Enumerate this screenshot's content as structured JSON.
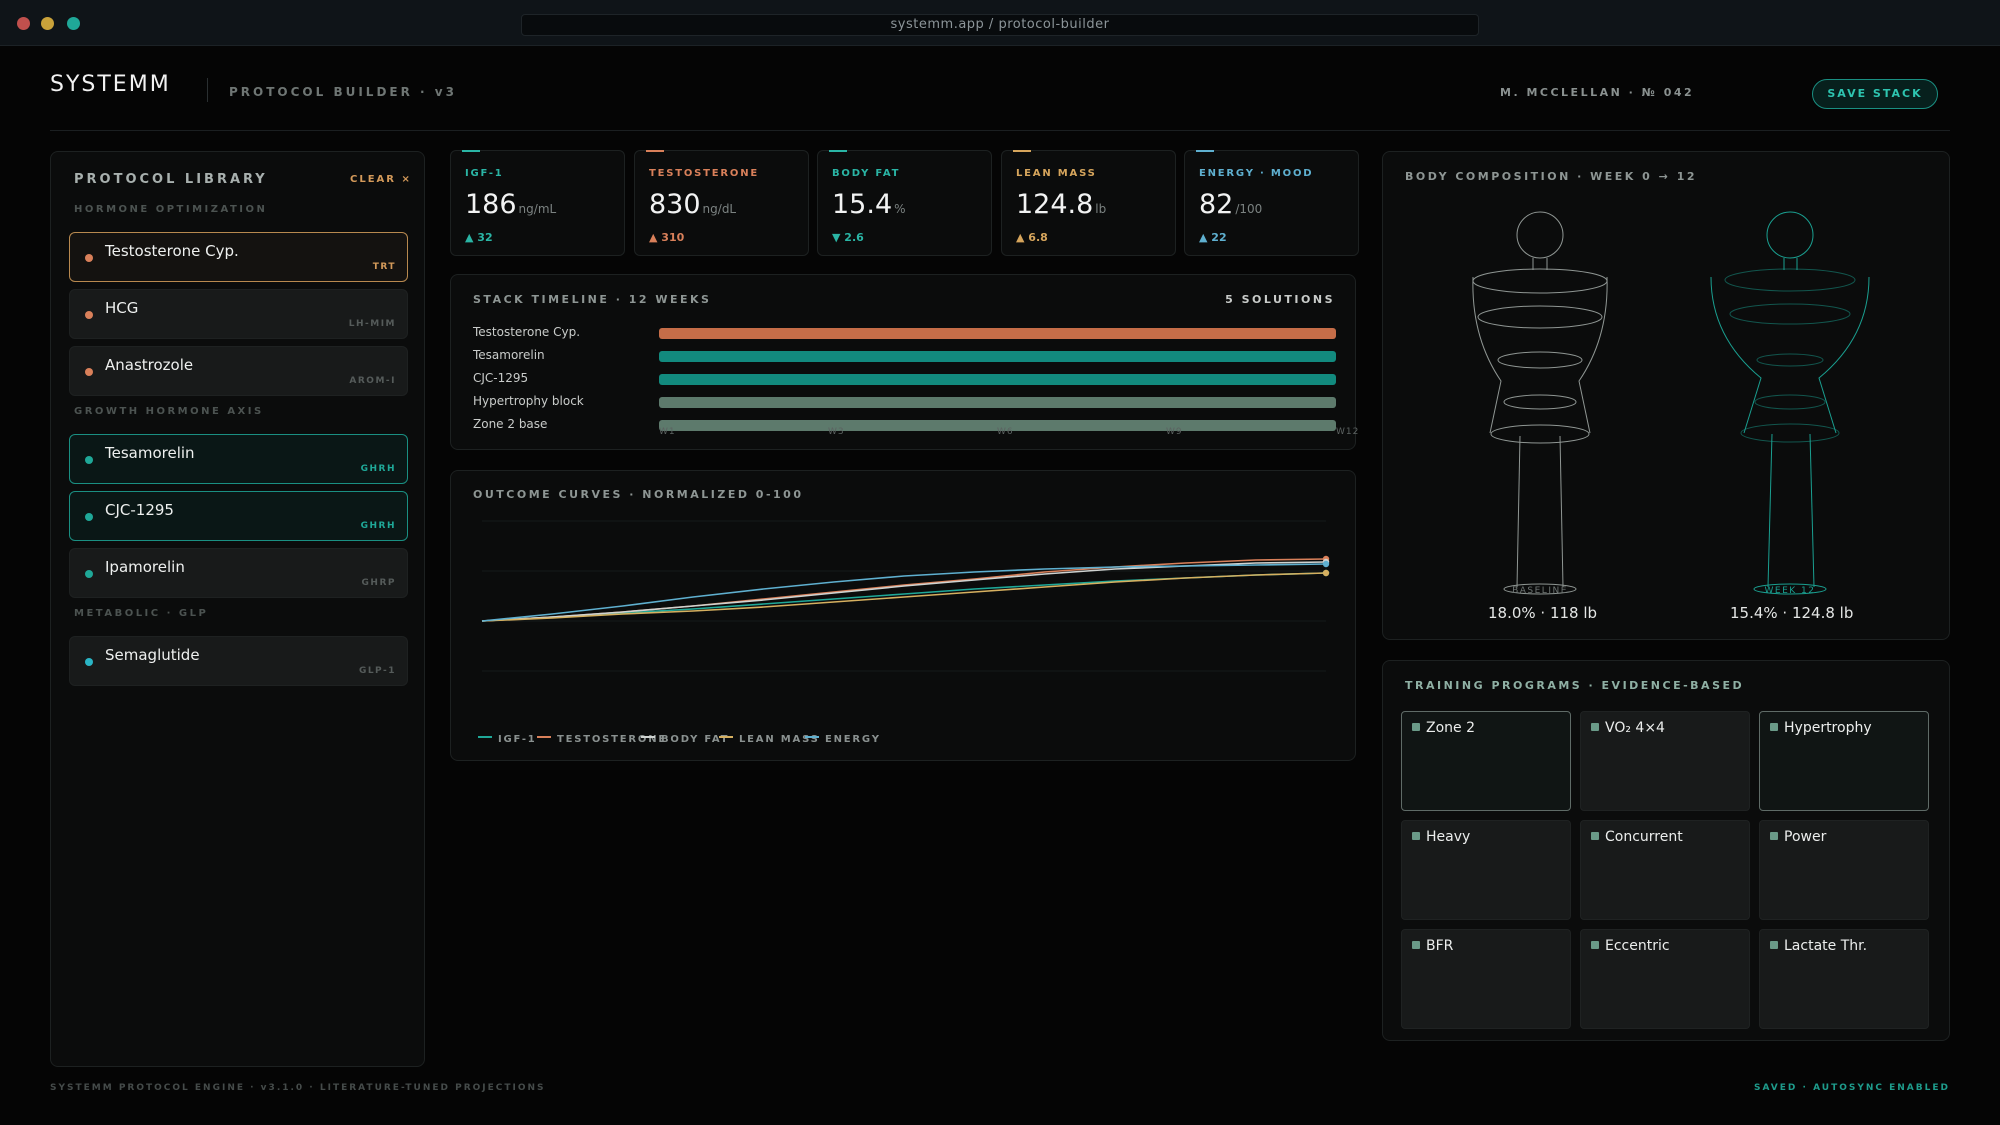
{
  "browser": {
    "url": "systemm.app / protocol-builder"
  },
  "header": {
    "logo": "SYSTEMM",
    "subtitle": "PROTOCOL BUILDER · v3",
    "user": "M. MCCLELLAN · № 042",
    "save_label": "SAVE STACK"
  },
  "library": {
    "title": "PROTOCOL LIBRARY",
    "clear_label": "CLEAR ×",
    "sections": [
      {
        "title": "HORMONE OPTIMIZATION",
        "items": [
          {
            "name": "Testosterone Cyp.",
            "tag": "TRT",
            "selected": true
          },
          {
            "name": "HCG",
            "tag": "LH-MIM",
            "selected": false
          },
          {
            "name": "Anastrozole",
            "tag": "AROM-I",
            "selected": false
          }
        ]
      },
      {
        "title": "GROWTH HORMONE AXIS",
        "items": [
          {
            "name": "Tesamorelin",
            "tag": "GHRH",
            "selected": true
          },
          {
            "name": "CJC-1295",
            "tag": "GHRH",
            "selected": true
          },
          {
            "name": "Ipamorelin",
            "tag": "GHRP",
            "selected": false
          }
        ]
      },
      {
        "title": "METABOLIC · GLP",
        "items": [
          {
            "name": "Semaglutide",
            "tag": "GLP-1",
            "selected": false
          }
        ]
      }
    ]
  },
  "metrics": [
    {
      "label": "IGF-1",
      "value": "186",
      "unit": "ng/mL",
      "delta": "▲ 32",
      "color": "#2ab5a5"
    },
    {
      "label": "TESTOSTERONE",
      "value": "830",
      "unit": "ng/dL",
      "delta": "▲ 310",
      "color": "#d9805a"
    },
    {
      "label": "BODY FAT",
      "value": "15.4",
      "unit": "%",
      "delta": "▼ 2.6",
      "color": "#2ab5a5"
    },
    {
      "label": "LEAN MASS",
      "value": "124.8",
      "unit": "lb",
      "delta": "▲ 6.8",
      "color": "#d6a55c"
    },
    {
      "label": "ENERGY · MOOD",
      "value": "82",
      "unit": "/100",
      "delta": "▲ 22",
      "color": "#5fb0d0"
    }
  ],
  "timeline": {
    "title": "STACK TIMELINE · 12 WEEKS",
    "count": "5 SOLUTIONS",
    "rows": [
      {
        "label": "Testosterone Cyp.",
        "color": "#c56d48"
      },
      {
        "label": "Tesamorelin",
        "color": "#128a7e"
      },
      {
        "label": "CJC-1295",
        "color": "#128a7e"
      },
      {
        "label": "Hypertrophy block",
        "color": "#5d7a6c"
      },
      {
        "label": "Zone 2 base",
        "color": "#5d7a6c"
      }
    ],
    "ticks": [
      "W1",
      "W3",
      "W6",
      "W9",
      "W12"
    ]
  },
  "outcomes": {
    "title": "OUTCOME CURVES · NORMALIZED 0-100",
    "chart_data": {
      "type": "line",
      "x": [
        0,
        1,
        2,
        3,
        4,
        5,
        6,
        7,
        8,
        9,
        10,
        11,
        12
      ],
      "ylim": [
        0,
        100
      ],
      "series": [
        {
          "name": "IGF-1",
          "color": "#1fa898",
          "values": [
            0,
            4,
            8,
            12,
            17,
            22,
            27,
            32,
            36,
            40,
            43,
            46,
            48
          ]
        },
        {
          "name": "TESTOSTERONE",
          "color": "#d9805a",
          "values": [
            0,
            4,
            9,
            15,
            22,
            29,
            36,
            42,
            49,
            54,
            58,
            61,
            62
          ]
        },
        {
          "name": "BODY FAT",
          "color": "#cfd3d1",
          "values": [
            0,
            4,
            9,
            15,
            21,
            28,
            35,
            41,
            47,
            52,
            55,
            58,
            59
          ]
        },
        {
          "name": "LEAN MASS",
          "color": "#d6b060",
          "values": [
            0,
            3,
            7,
            10,
            14,
            19,
            24,
            29,
            34,
            39,
            43,
            46,
            48
          ]
        },
        {
          "name": "ENERGY",
          "color": "#5fb0d0",
          "values": [
            0,
            7,
            15,
            24,
            32,
            39,
            45,
            49,
            52,
            54,
            55,
            56,
            57
          ]
        }
      ]
    }
  },
  "body_comp": {
    "title": "BODY COMPOSITION · WEEK 0 → 12",
    "baseline_label": "BASELINE",
    "baseline_caption": "18.0% · 118 lb",
    "week_label": "WEEK 12",
    "week_caption": "15.4% · 124.8 lb"
  },
  "training": {
    "title": "TRAINING PROGRAMS · EVIDENCE-BASED",
    "programs": [
      {
        "name": "Zone 2",
        "selected": true
      },
      {
        "name": "VO₂ 4×4",
        "selected": false
      },
      {
        "name": "Hypertrophy",
        "selected": true
      },
      {
        "name": "Heavy",
        "selected": false
      },
      {
        "name": "Concurrent",
        "selected": false
      },
      {
        "name": "Power",
        "selected": false
      },
      {
        "name": "BFR",
        "selected": false
      },
      {
        "name": "Eccentric",
        "selected": false
      },
      {
        "name": "Lactate Thr.",
        "selected": false
      }
    ]
  },
  "footer": {
    "left": "SYSTEMM PROTOCOL ENGINE · v3.1.0 · LITERATURE-TUNED PROJECTIONS",
    "right": "SAVED · AUTOSYNC ENABLED"
  },
  "colors": {
    "accent": "#1a8f82",
    "amber": "#d49a5a",
    "bg": "#050505"
  }
}
